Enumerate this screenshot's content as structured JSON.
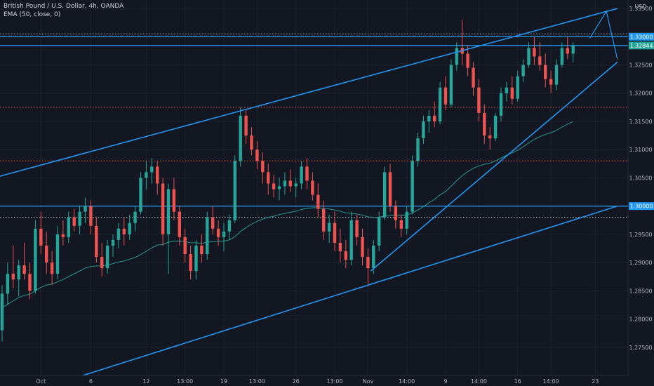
{
  "legend": {
    "symbol": "British Pound / U.S. Dollar, 4h, OANDA",
    "indicator": "EMA (50, close, 0)"
  },
  "chart_data": {
    "type": "candlestick",
    "currency": "USD",
    "ylim": [
      1.27,
      1.3365
    ],
    "y_ticks": [
      1.275,
      1.28,
      1.285,
      1.29,
      1.295,
      1.3,
      1.305,
      1.31,
      1.315,
      1.32,
      1.325,
      1.33,
      1.335
    ],
    "y_tick_labels": [
      "1.27500",
      "1.28000",
      "1.28500",
      "1.29000",
      "1.29500",
      "1.30000",
      "1.30500",
      "1.31000",
      "1.31500",
      "1.32000",
      "1.32500",
      "1.33000",
      "1.33500"
    ],
    "x_ticks": [
      {
        "label": "Oct",
        "bar": 7
      },
      {
        "label": "6",
        "bar": 16
      },
      {
        "label": "12",
        "bar": 26
      },
      {
        "label": "13:00",
        "bar": 33
      },
      {
        "label": "19",
        "bar": 40
      },
      {
        "label": "13:00",
        "bar": 46
      },
      {
        "label": "26",
        "bar": 53
      },
      {
        "label": "13:00",
        "bar": 60
      },
      {
        "label": "Nov",
        "bar": 66
      },
      {
        "label": "14:00",
        "bar": 73
      },
      {
        "label": "9",
        "bar": 80
      },
      {
        "label": "14:00",
        "bar": 86
      },
      {
        "label": "16",
        "bar": 93
      },
      {
        "label": "14:00",
        "bar": 99
      },
      {
        "label": "23",
        "bar": 107
      }
    ],
    "candles": [
      [
        1.278,
        1.286,
        1.276,
        1.2845
      ],
      [
        1.2845,
        1.29,
        1.2825,
        1.288
      ],
      [
        1.288,
        1.293,
        1.2855,
        1.287
      ],
      [
        1.287,
        1.2905,
        1.284,
        1.2895
      ],
      [
        1.2895,
        1.2935,
        1.287,
        1.288
      ],
      [
        1.288,
        1.29,
        1.2835,
        1.285
      ],
      [
        1.285,
        1.2975,
        1.2845,
        1.296
      ],
      [
        1.296,
        1.299,
        1.2915,
        1.293
      ],
      [
        1.293,
        1.2955,
        1.288,
        1.29
      ],
      [
        1.29,
        1.292,
        1.286,
        1.288
      ],
      [
        1.288,
        1.2965,
        1.287,
        1.295
      ],
      [
        1.295,
        1.2975,
        1.293,
        1.2945
      ],
      [
        1.2945,
        1.299,
        1.2935,
        1.298
      ],
      [
        1.298,
        1.2995,
        1.2955,
        1.2965
      ],
      [
        1.2965,
        1.3,
        1.295,
        1.299
      ],
      [
        1.299,
        1.3015,
        1.297,
        1.3
      ],
      [
        1.3,
        1.301,
        1.295,
        1.2965
      ],
      [
        1.2965,
        1.298,
        1.29,
        1.291
      ],
      [
        1.291,
        1.2935,
        1.2875,
        1.289
      ],
      [
        1.289,
        1.294,
        1.288,
        1.293
      ],
      [
        1.293,
        1.295,
        1.291,
        1.294
      ],
      [
        1.294,
        1.297,
        1.2925,
        1.296
      ],
      [
        1.296,
        1.298,
        1.293,
        1.295
      ],
      [
        1.295,
        1.2985,
        1.294,
        1.297
      ],
      [
        1.297,
        1.3,
        1.2955,
        1.299
      ],
      [
        1.299,
        1.306,
        1.2985,
        1.305
      ],
      [
        1.305,
        1.308,
        1.303,
        1.306
      ],
      [
        1.306,
        1.3085,
        1.304,
        1.307
      ],
      [
        1.307,
        1.308,
        1.302,
        1.304
      ],
      [
        1.304,
        1.305,
        1.293,
        1.295
      ],
      [
        1.295,
        1.304,
        1.288,
        1.303
      ],
      [
        1.303,
        1.305,
        1.2975,
        1.299
      ],
      [
        1.299,
        1.3,
        1.293,
        1.2945
      ],
      [
        1.2945,
        1.296,
        1.29,
        1.2915
      ],
      [
        1.2915,
        1.293,
        1.287,
        1.2885
      ],
      [
        1.2885,
        1.294,
        1.287,
        1.293
      ],
      [
        1.293,
        1.295,
        1.29,
        1.2915
      ],
      [
        1.2915,
        1.299,
        1.2905,
        1.298
      ],
      [
        1.298,
        1.3,
        1.295,
        1.296
      ],
      [
        1.296,
        1.2975,
        1.293,
        1.2945
      ],
      [
        1.2945,
        1.297,
        1.292,
        1.2955
      ],
      [
        1.2955,
        1.2985,
        1.294,
        1.2975
      ],
      [
        1.2975,
        1.309,
        1.297,
        1.308
      ],
      [
        1.308,
        1.3175,
        1.307,
        1.316
      ],
      [
        1.316,
        1.317,
        1.311,
        1.3125
      ],
      [
        1.3125,
        1.314,
        1.309,
        1.31
      ],
      [
        1.31,
        1.3115,
        1.3065,
        1.308
      ],
      [
        1.308,
        1.3095,
        1.304,
        1.306
      ],
      [
        1.306,
        1.3075,
        1.302,
        1.304
      ],
      [
        1.304,
        1.3055,
        1.3015,
        1.303
      ],
      [
        1.303,
        1.305,
        1.301,
        1.3035
      ],
      [
        1.3035,
        1.306,
        1.302,
        1.3045
      ],
      [
        1.3045,
        1.3065,
        1.3025,
        1.3035
      ],
      [
        1.3035,
        1.305,
        1.3015,
        1.304
      ],
      [
        1.304,
        1.308,
        1.303,
        1.307
      ],
      [
        1.307,
        1.3085,
        1.303,
        1.3045
      ],
      [
        1.3045,
        1.306,
        1.301,
        1.302
      ],
      [
        1.302,
        1.304,
        1.298,
        1.2995
      ],
      [
        1.2995,
        1.301,
        1.294,
        1.2955
      ],
      [
        1.2955,
        1.2985,
        1.2935,
        1.297
      ],
      [
        1.297,
        1.299,
        1.292,
        1.2935
      ],
      [
        1.2935,
        1.296,
        1.29,
        1.292
      ],
      [
        1.292,
        1.294,
        1.289,
        1.2905
      ],
      [
        1.2905,
        1.299,
        1.2895,
        1.2975
      ],
      [
        1.2975,
        1.2985,
        1.293,
        1.2945
      ],
      [
        1.2945,
        1.296,
        1.2895,
        1.291
      ],
      [
        1.291,
        1.2925,
        1.286,
        1.289
      ],
      [
        1.289,
        1.294,
        1.288,
        1.293
      ],
      [
        1.293,
        1.299,
        1.292,
        1.298
      ],
      [
        1.298,
        1.307,
        1.2975,
        1.306
      ],
      [
        1.306,
        1.3075,
        1.299,
        1.3
      ],
      [
        1.3,
        1.301,
        1.296,
        1.2975
      ],
      [
        1.2975,
        1.2985,
        1.2945,
        1.296
      ],
      [
        1.296,
        1.3,
        1.295,
        1.299
      ],
      [
        1.299,
        1.309,
        1.2985,
        1.308
      ],
      [
        1.308,
        1.313,
        1.307,
        1.312
      ],
      [
        1.312,
        1.316,
        1.311,
        1.315
      ],
      [
        1.315,
        1.317,
        1.313,
        1.316
      ],
      [
        1.316,
        1.3185,
        1.314,
        1.315
      ],
      [
        1.315,
        1.322,
        1.3145,
        1.321
      ],
      [
        1.321,
        1.323,
        1.317,
        1.318
      ],
      [
        1.318,
        1.326,
        1.3175,
        1.325
      ],
      [
        1.325,
        1.329,
        1.324,
        1.328
      ],
      [
        1.328,
        1.333,
        1.325,
        1.327
      ],
      [
        1.327,
        1.3285,
        1.323,
        1.3245
      ],
      [
        1.3245,
        1.3255,
        1.3195,
        1.321
      ],
      [
        1.321,
        1.3225,
        1.315,
        1.3165
      ],
      [
        1.3165,
        1.318,
        1.311,
        1.3125
      ],
      [
        1.3125,
        1.314,
        1.31,
        1.312
      ],
      [
        1.312,
        1.3165,
        1.3115,
        1.316
      ],
      [
        1.316,
        1.321,
        1.315,
        1.32
      ],
      [
        1.32,
        1.322,
        1.3185,
        1.321
      ],
      [
        1.321,
        1.323,
        1.318,
        1.319
      ],
      [
        1.319,
        1.324,
        1.3185,
        1.323
      ],
      [
        1.323,
        1.326,
        1.322,
        1.325
      ],
      [
        1.325,
        1.329,
        1.3245,
        1.328
      ],
      [
        1.328,
        1.33,
        1.325,
        1.3265
      ],
      [
        1.3265,
        1.329,
        1.324,
        1.325
      ],
      [
        1.325,
        1.327,
        1.321,
        1.3225
      ],
      [
        1.3225,
        1.324,
        1.32,
        1.3215
      ],
      [
        1.3215,
        1.326,
        1.3205,
        1.325
      ],
      [
        1.325,
        1.329,
        1.3245,
        1.328
      ],
      [
        1.328,
        1.33,
        1.326,
        1.327
      ],
      [
        1.327,
        1.329,
        1.3255,
        1.3284
      ]
    ],
    "ema_50": [
      1.282,
      1.2826,
      1.2832,
      1.2838,
      1.2842,
      1.2844,
      1.285,
      1.2856,
      1.286,
      1.2862,
      1.2866,
      1.287,
      1.2875,
      1.288,
      1.2885,
      1.289,
      1.2893,
      1.2894,
      1.2894,
      1.2896,
      1.2898,
      1.2901,
      1.2903,
      1.2906,
      1.2909,
      1.2914,
      1.292,
      1.2926,
      1.2931,
      1.2932,
      1.2936,
      1.2938,
      1.2938,
      1.2937,
      1.2935,
      1.2935,
      1.2934,
      1.2936,
      1.2937,
      1.2938,
      1.2938,
      1.294,
      1.2946,
      1.2955,
      1.2962,
      1.2968,
      1.2973,
      1.2977,
      1.298,
      1.2982,
      1.2985,
      1.2987,
      1.2989,
      1.2991,
      1.2994,
      1.2996,
      1.2997,
      1.2997,
      1.2996,
      1.2995,
      1.2993,
      1.2991,
      1.2988,
      1.2987,
      1.2986,
      1.2984,
      1.2981,
      1.298,
      1.298,
      1.2983,
      1.2984,
      1.2984,
      1.2984,
      1.2984,
      1.2988,
      1.2993,
      1.2999,
      1.3006,
      1.3012,
      1.302,
      1.3026,
      1.3035,
      1.3045,
      1.3054,
      1.3061,
      1.3067,
      1.3071,
      1.3074,
      1.3076,
      1.308,
      1.3085,
      1.309,
      1.3094,
      1.3099,
      1.3105,
      1.3112,
      1.3118,
      1.3123,
      1.3127,
      1.313,
      1.3134,
      1.314,
      1.3145,
      1.315
    ],
    "horizontal_levels": [
      {
        "price": 1.33,
        "style": "solid",
        "color": "#2196f3",
        "tag": "1.33000",
        "tag_color": "#2196f3"
      },
      {
        "price": 1.32844,
        "style": "solid",
        "color": "#2196f3",
        "tag": "1.32844",
        "tag_color": "#26a69a"
      },
      {
        "price": 1.3305,
        "style": "dotted",
        "color": "#b2b5be"
      },
      {
        "price": 1.3175,
        "style": "dotted",
        "color": "#ef5350"
      },
      {
        "price": 1.308,
        "style": "dotted",
        "color": "#ef5350"
      },
      {
        "price": 1.3,
        "style": "solid",
        "color": "#2196f3",
        "tag": "1.30000",
        "tag_color": "#2196f3"
      },
      {
        "price": 1.298,
        "style": "dotted",
        "color": "#d1d4dc"
      }
    ],
    "trend_lines": [
      {
        "from": [
          -1.5,
          1.305
        ],
        "to": [
          111,
          1.335
        ]
      },
      {
        "from": [
          -1.5,
          1.265
        ],
        "to": [
          111,
          1.3
        ]
      },
      {
        "from": [
          66.5,
          1.2885
        ],
        "to": [
          111,
          1.3255
        ]
      },
      {
        "projection": true,
        "points": [
          [
            106,
            1.3297
          ],
          [
            109,
            1.3345
          ],
          [
            111,
            1.326
          ]
        ]
      }
    ],
    "colors": {
      "up": "#26a69a",
      "down": "#ef5350",
      "ema": "#26a69a",
      "line": "#2196f3",
      "background": "#131722"
    }
  }
}
